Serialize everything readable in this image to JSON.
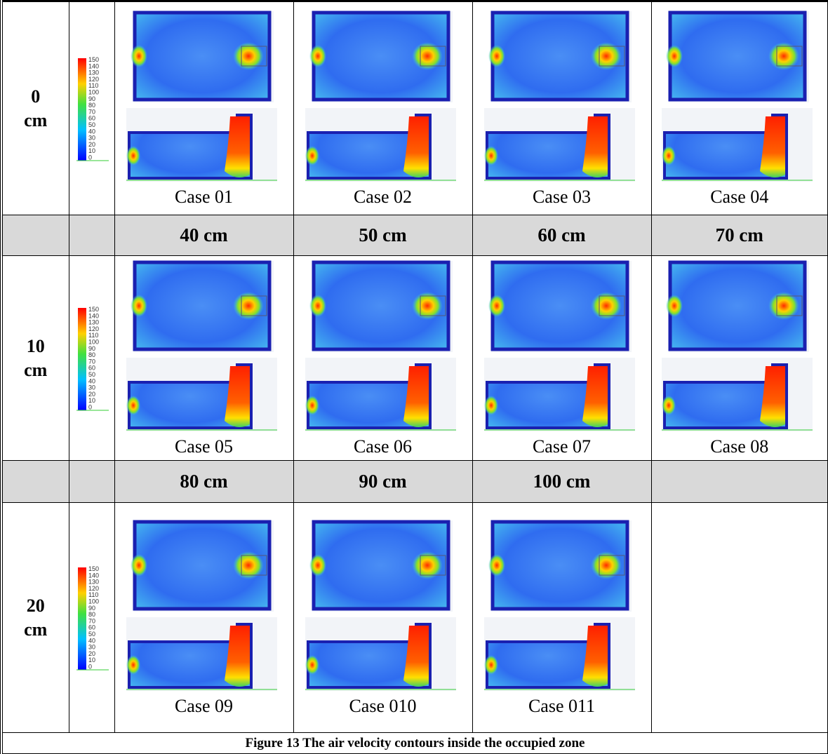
{
  "legend_ticks": [
    150,
    140,
    130,
    120,
    110,
    100,
    90,
    80,
    70,
    60,
    50,
    40,
    30,
    20,
    10,
    0
  ],
  "blocks": [
    {
      "row_label": [
        "0",
        "cm"
      ],
      "cases": [
        "Case 01",
        "Case 02",
        "Case 03",
        "Case 04"
      ]
    },
    {
      "row_label": [
        "10",
        "cm"
      ],
      "cases": [
        "Case 05",
        "Case 06",
        "Case 07",
        "Case 08"
      ]
    },
    {
      "row_label": [
        "20",
        "cm"
      ],
      "cases": [
        "Case 09",
        "Case 010",
        "Case 011"
      ]
    }
  ],
  "headers": [
    [
      "40 cm",
      "50 cm",
      "60 cm",
      "70 cm"
    ],
    [
      "80 cm",
      "90 cm",
      "100 cm"
    ]
  ],
  "caption": "Figure 13 The air velocity contours inside the occupied zone"
}
